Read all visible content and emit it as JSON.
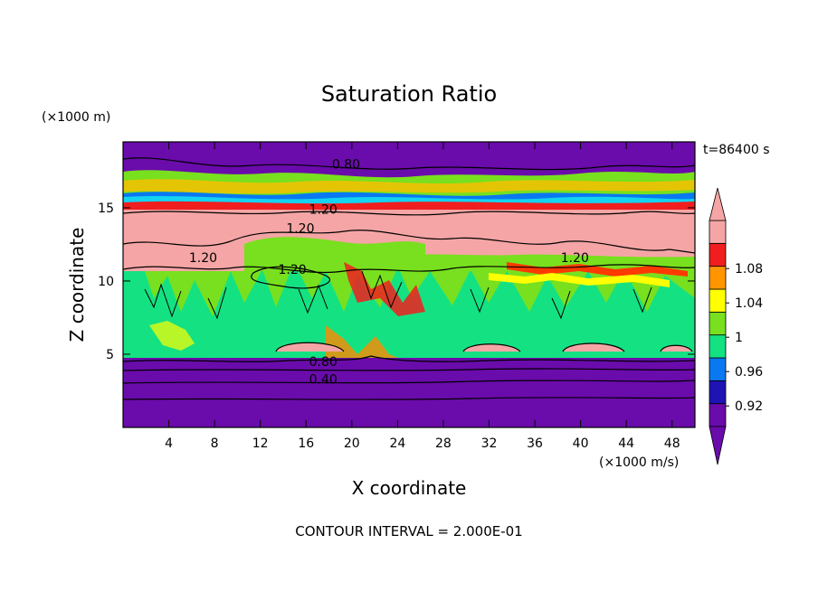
{
  "chart_data": {
    "type": "heatmap",
    "title": "Saturation Ratio",
    "xlabel": "X coordinate",
    "ylabel": "Z coordinate",
    "x_unit": "(×1000 m/s)",
    "y_unit": "(×1000 m)",
    "time_label": "t=86400 s",
    "footer": "CONTOUR INTERVAL = 2.000E-01",
    "xlim": [
      0,
      50
    ],
    "ylim": [
      0,
      19.5
    ],
    "x_ticks": [
      4,
      8,
      12,
      16,
      20,
      24,
      28,
      32,
      36,
      40,
      44,
      48
    ],
    "y_ticks": [
      5,
      10,
      15
    ],
    "colorbar": {
      "levels": [
        0.92,
        0.96,
        1,
        1.04,
        1.08
      ],
      "level_labels": [
        "0.92",
        "0.96",
        "1",
        "1.04",
        "1.08"
      ],
      "bins": [
        "#6a0bab",
        "#3a19b3",
        "#0a14c8",
        "#0a78f0",
        "#14d2f0",
        "#14e282",
        "#78e01e",
        "#ffff00",
        "#ffbe00",
        "#ff8a00",
        "#ff3a00",
        "#f01e1e",
        "#f5a5a5"
      ],
      "bins_labeled": [
        "#6a0bab",
        "#1e14b4",
        "#0a78f0",
        "#14e282",
        "#78e01e",
        "#ffff00",
        "#ff9600",
        "#f01e1e",
        "#f5a5a5"
      ]
    },
    "contour_labels": [
      {
        "text": "0.80",
        "x": 19.5,
        "z": 18.0
      },
      {
        "text": "1.20",
        "x": 17.5,
        "z": 14.9
      },
      {
        "text": "1.20",
        "x": 15.5,
        "z": 13.6
      },
      {
        "text": "1.20",
        "x": 7.0,
        "z": 11.6
      },
      {
        "text": "1.20",
        "x": 14.8,
        "z": 10.8
      },
      {
        "text": "1.20",
        "x": 39.5,
        "z": 11.6
      },
      {
        "text": "0.80",
        "x": 17.5,
        "z": 4.5
      },
      {
        "text": "0.40",
        "x": 17.5,
        "z": 3.3
      }
    ]
  }
}
